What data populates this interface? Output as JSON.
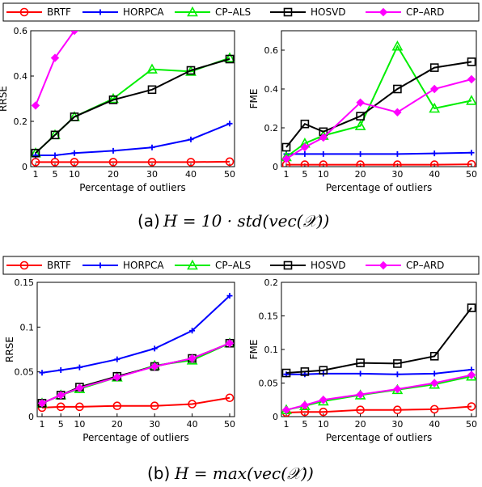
{
  "captions": [
    {
      "prefix": "(a)",
      "math": "H = 10 · std(vec(𝒳))"
    },
    {
      "prefix": "(b)",
      "math": "H = max(vec(𝒳))"
    }
  ],
  "legend_labels": [
    "BRTF",
    "HORPCA",
    "CP–ALS",
    "HOSVD",
    "CP–ARD"
  ],
  "chart_data": [
    {
      "type": "line",
      "id": "a-rrse",
      "xlabel": "Percentage of outliers",
      "ylabel": "RRSE",
      "x": [
        1,
        5,
        10,
        20,
        30,
        40,
        50
      ],
      "ylim": [
        0,
        0.6
      ],
      "yticks": [
        "0",
        "0.2",
        "0.4",
        "0.6"
      ],
      "ytick_values": [
        0,
        0.2,
        0.4,
        0.6
      ],
      "series": [
        {
          "name": "BRTF",
          "color": "#ff0000",
          "marker": "circle",
          "values": [
            0.02,
            0.02,
            0.02,
            0.02,
            0.02,
            0.02,
            0.022
          ]
        },
        {
          "name": "HORPCA",
          "color": "#0000ff",
          "marker": "plus",
          "values": [
            0.05,
            0.05,
            0.06,
            0.07,
            0.085,
            0.12,
            0.19
          ]
        },
        {
          "name": "CP–ALS",
          "color": "#00ee00",
          "marker": "triangle",
          "values": [
            0.06,
            0.14,
            0.22,
            0.3,
            0.43,
            0.42,
            0.48
          ]
        },
        {
          "name": "HOSVD",
          "color": "#000000",
          "marker": "square",
          "values": [
            0.06,
            0.14,
            0.22,
            0.295,
            0.34,
            0.425,
            0.475
          ]
        },
        {
          "name": "CP–ARD",
          "color": "#ff00ff",
          "marker": "diamond",
          "values": [
            0.27,
            0.48,
            0.6,
            null,
            null,
            null,
            null
          ]
        }
      ]
    },
    {
      "type": "line",
      "id": "a-fme",
      "xlabel": "Percentage of outliers",
      "ylabel": "FME",
      "x": [
        1,
        5,
        10,
        20,
        30,
        40,
        50
      ],
      "ylim": [
        0,
        0.7
      ],
      "yticks": [
        "0",
        "0.2",
        "0.4",
        "0.6"
      ],
      "ytick_values": [
        0,
        0.2,
        0.4,
        0.6
      ],
      "series": [
        {
          "name": "BRTF",
          "color": "#ff0000",
          "marker": "circle",
          "values": [
            0.01,
            0.01,
            0.01,
            0.01,
            0.01,
            0.01,
            0.012
          ]
        },
        {
          "name": "HORPCA",
          "color": "#0000ff",
          "marker": "plus",
          "values": [
            0.065,
            0.065,
            0.065,
            0.065,
            0.065,
            0.068,
            0.072
          ]
        },
        {
          "name": "CP–ALS",
          "color": "#00ee00",
          "marker": "triangle",
          "values": [
            0.05,
            0.12,
            0.16,
            0.21,
            0.62,
            0.3,
            0.34
          ]
        },
        {
          "name": "HOSVD",
          "color": "#000000",
          "marker": "square",
          "values": [
            0.1,
            0.22,
            0.18,
            0.26,
            0.4,
            0.51,
            0.54
          ]
        },
        {
          "name": "CP–ARD",
          "color": "#ff00ff",
          "marker": "diamond",
          "values": [
            0.04,
            0.1,
            0.15,
            0.33,
            0.28,
            0.4,
            0.45
          ]
        }
      ]
    },
    {
      "type": "line",
      "id": "b-rrse",
      "xlabel": "Percentage of outliers",
      "ylabel": "RRSE",
      "x": [
        1,
        5,
        10,
        20,
        30,
        40,
        50
      ],
      "ylim": [
        0,
        0.15
      ],
      "yticks": [
        "0",
        "0.05",
        "0.1",
        "0.15"
      ],
      "ytick_values": [
        0,
        0.05,
        0.1,
        0.15
      ],
      "series": [
        {
          "name": "BRTF",
          "color": "#ff0000",
          "marker": "circle",
          "values": [
            0.01,
            0.011,
            0.011,
            0.012,
            0.012,
            0.014,
            0.021
          ]
        },
        {
          "name": "HORPCA",
          "color": "#0000ff",
          "marker": "plus",
          "values": [
            0.049,
            0.052,
            0.055,
            0.064,
            0.076,
            0.096,
            0.135
          ]
        },
        {
          "name": "CP–ALS",
          "color": "#00ee00",
          "marker": "triangle",
          "values": [
            0.015,
            0.024,
            0.031,
            0.044,
            0.057,
            0.063,
            0.082
          ]
        },
        {
          "name": "HOSVD",
          "color": "#000000",
          "marker": "square",
          "values": [
            0.015,
            0.024,
            0.033,
            0.045,
            0.056,
            0.065,
            0.082
          ]
        },
        {
          "name": "CP–ARD",
          "color": "#ff00ff",
          "marker": "diamond",
          "values": [
            0.015,
            0.024,
            0.032,
            0.044,
            0.056,
            0.065,
            0.082
          ]
        }
      ]
    },
    {
      "type": "line",
      "id": "b-fme",
      "xlabel": "Percentage of outliers",
      "ylabel": "FME",
      "x": [
        1,
        5,
        10,
        20,
        30,
        40,
        50
      ],
      "ylim": [
        0,
        0.2
      ],
      "yticks": [
        "0",
        "0.05",
        "0.1",
        "0.15",
        "0.2"
      ],
      "ytick_values": [
        0,
        0.05,
        0.1,
        0.15,
        0.2
      ],
      "series": [
        {
          "name": "BRTF",
          "color": "#ff0000",
          "marker": "circle",
          "values": [
            0.006,
            0.007,
            0.007,
            0.01,
            0.01,
            0.011,
            0.015
          ]
        },
        {
          "name": "HORPCA",
          "color": "#0000ff",
          "marker": "plus",
          "values": [
            0.063,
            0.063,
            0.064,
            0.064,
            0.063,
            0.064,
            0.07
          ]
        },
        {
          "name": "CP–ALS",
          "color": "#00ee00",
          "marker": "triangle",
          "values": [
            0.01,
            0.016,
            0.023,
            0.032,
            0.04,
            0.048,
            0.06
          ]
        },
        {
          "name": "HOSVD",
          "color": "#000000",
          "marker": "square",
          "values": [
            0.065,
            0.067,
            0.069,
            0.08,
            0.079,
            0.09,
            0.162
          ]
        },
        {
          "name": "CP–ARD",
          "color": "#ff00ff",
          "marker": "diamond",
          "values": [
            0.01,
            0.017,
            0.025,
            0.033,
            0.041,
            0.05,
            0.062
          ]
        }
      ]
    }
  ]
}
